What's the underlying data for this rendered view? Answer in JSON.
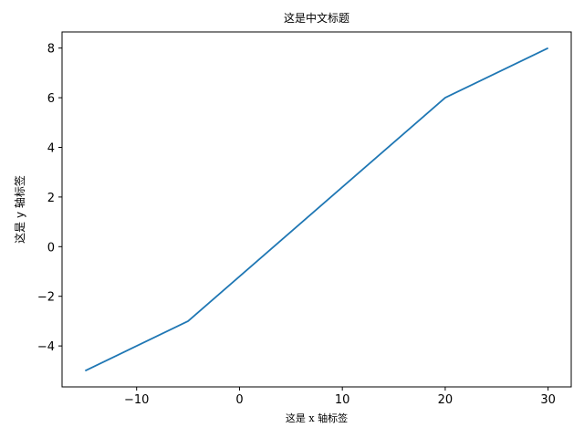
{
  "chart_data": {
    "type": "line",
    "title": "这是中文标题",
    "xlabel": "这是 x 轴标签",
    "ylabel": "这是 y 轴标签",
    "xlim": [
      -17.25,
      32.25
    ],
    "ylim": [
      -5.65,
      8.65
    ],
    "x_ticks": [
      -10,
      0,
      10,
      20,
      30
    ],
    "x_tick_labels": [
      "−10",
      "0",
      "10",
      "20",
      "30"
    ],
    "y_ticks": [
      -4,
      -2,
      0,
      2,
      4,
      6,
      8
    ],
    "y_tick_labels": [
      "−4",
      "−2",
      "0",
      "2",
      "4",
      "6",
      "8"
    ],
    "grid": false,
    "series": [
      {
        "x": [
          -15,
          -5,
          20,
          30
        ],
        "y": [
          -5,
          -3,
          6,
          8
        ]
      }
    ],
    "colors": {
      "line": "#1f77b4",
      "axes": "#000000"
    }
  }
}
